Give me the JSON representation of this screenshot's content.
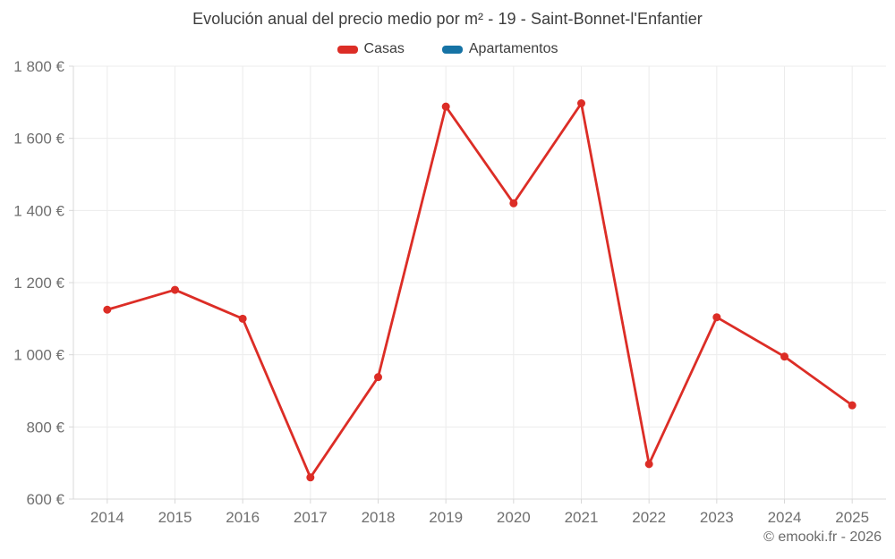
{
  "header": {
    "title": "Evolución anual del precio medio por m² - 19 - Saint-Bonnet-l'Enfantier"
  },
  "legend": {
    "items": [
      {
        "label": "Casas",
        "color": "#dc2d26"
      },
      {
        "label": "Apartamentos",
        "color": "#1673a5"
      }
    ]
  },
  "footer": {
    "copyright": "© emooki.fr - 2026"
  },
  "chart_data": {
    "type": "line",
    "title": "Evolución anual del precio medio por m² - 19 - Saint-Bonnet-l'Enfantier",
    "categories": [
      "2014",
      "2015",
      "2016",
      "2017",
      "2018",
      "2019",
      "2020",
      "2021",
      "2022",
      "2023",
      "2024",
      "2025"
    ],
    "series": [
      {
        "name": "Casas",
        "color": "#dc2d26",
        "values": [
          1125,
          1180,
          1100,
          660,
          938,
          1688,
          1420,
          1697,
          697,
          1104,
          995,
          860
        ]
      },
      {
        "name": "Apartamentos",
        "color": "#1673a5",
        "values": []
      }
    ],
    "xlabel": "",
    "ylabel": "",
    "ylim": [
      600,
      1800
    ],
    "y_ticks": [
      {
        "value": 600,
        "label": "600 €"
      },
      {
        "value": 800,
        "label": "800 €"
      },
      {
        "value": 1000,
        "label": "1 000 €"
      },
      {
        "value": 1200,
        "label": "1 200 €"
      },
      {
        "value": 1400,
        "label": "1 400 €"
      },
      {
        "value": 1600,
        "label": "1 600 €"
      },
      {
        "value": 1800,
        "label": "1 800 €"
      }
    ],
    "grid": true,
    "legend_position": "top",
    "colors": {
      "grid": "#ececec",
      "axis": "#d8d8d8",
      "tick_text": "#707070"
    }
  }
}
